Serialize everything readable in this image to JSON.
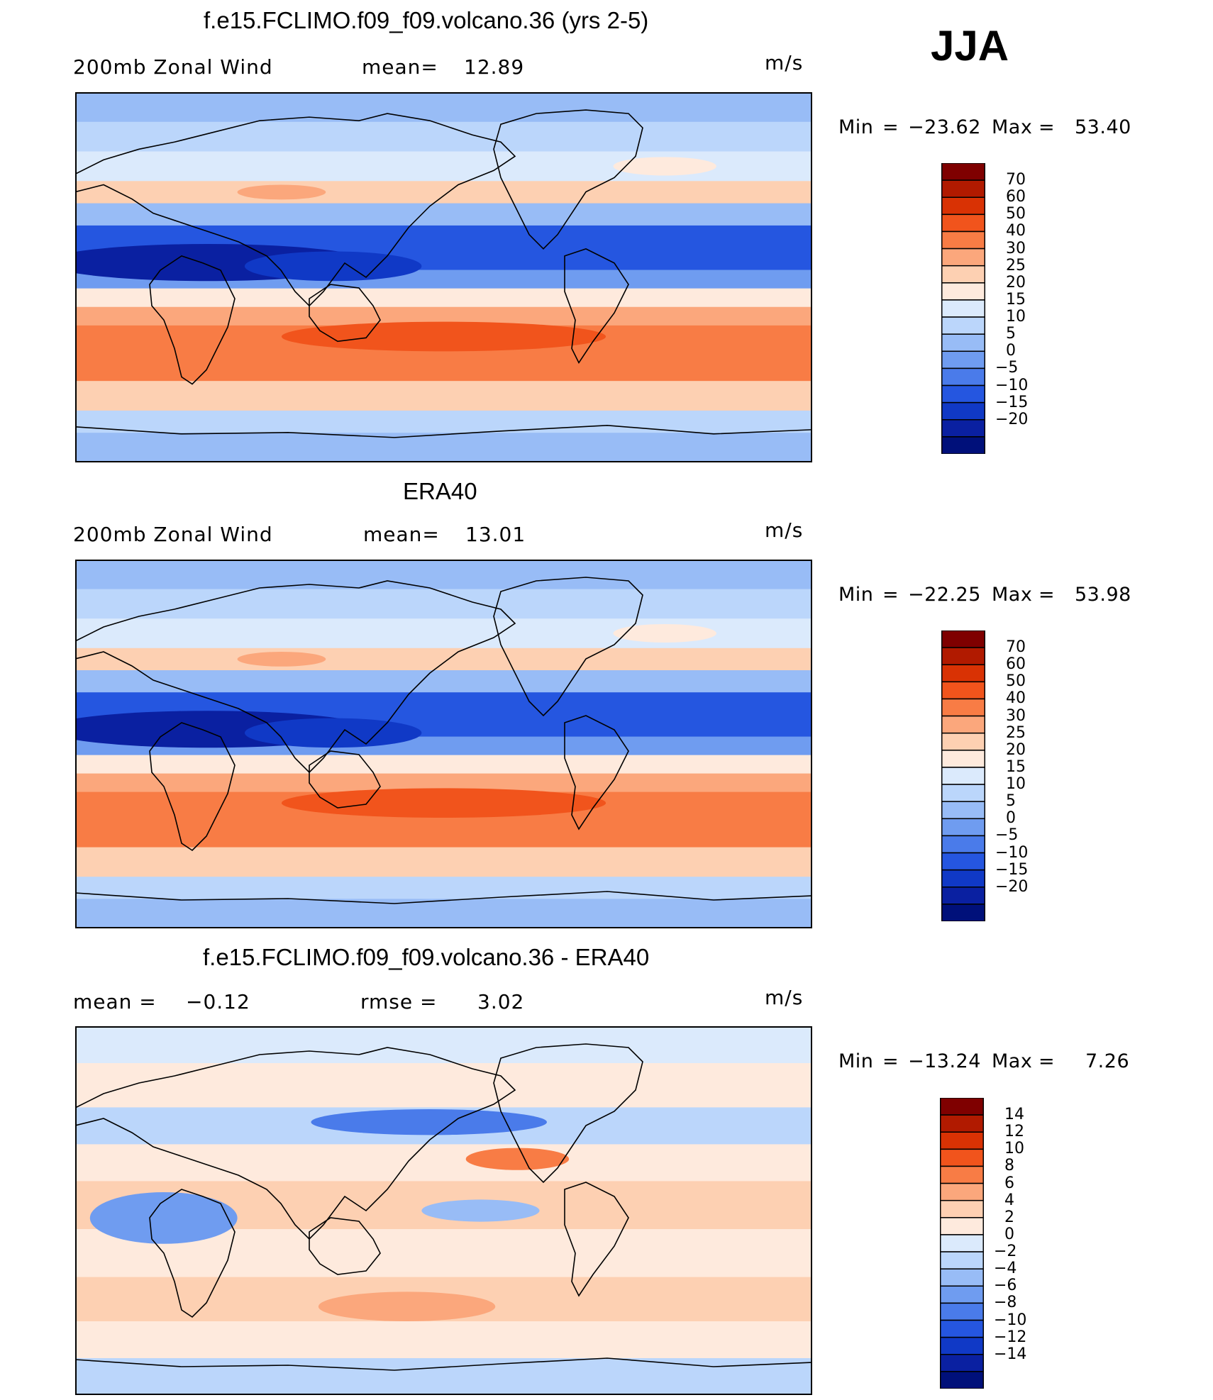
{
  "season": "JJA",
  "units": "m/s",
  "panels": [
    {
      "title": "f.e15.FCLIMO.f09_f09.volcano.36 (yrs 2-5)",
      "left_label": "200mb Zonal Wind",
      "mid_label": "mean=",
      "mid_value": "12.89",
      "units": "m/s",
      "min_label": "Min",
      "min_value": "−23.62",
      "max_label": "Max",
      "max_value": "53.40",
      "field_type": "full",
      "colorbar": {
        "colors": [
          "#7f0000",
          "#b11a00",
          "#d93204",
          "#f1541c",
          "#f87c45",
          "#fba77c",
          "#fdd0b2",
          "#feeadd",
          "#dbeafc",
          "#bbd6fb",
          "#98bcf6",
          "#6f9cf0",
          "#4a7bea",
          "#2556e0",
          "#1039c6",
          "#0a20a1",
          "#00107a"
        ],
        "labels": [
          "70",
          "60",
          "50",
          "40",
          "30",
          "25",
          "20",
          "15",
          "10",
          "5",
          "0",
          "−5",
          "−10",
          "−15",
          "−20"
        ]
      }
    },
    {
      "title": "ERA40",
      "left_label": "200mb Zonal Wind",
      "mid_label": "mean=",
      "mid_value": "13.01",
      "units": "m/s",
      "min_label": "Min",
      "min_value": "−22.25",
      "max_label": "Max",
      "max_value": "53.98",
      "field_type": "full",
      "colorbar": {
        "colors": [
          "#7f0000",
          "#b11a00",
          "#d93204",
          "#f1541c",
          "#f87c45",
          "#fba77c",
          "#fdd0b2",
          "#feeadd",
          "#dbeafc",
          "#bbd6fb",
          "#98bcf6",
          "#6f9cf0",
          "#4a7bea",
          "#2556e0",
          "#1039c6",
          "#0a20a1",
          "#00107a"
        ],
        "labels": [
          "70",
          "60",
          "50",
          "40",
          "30",
          "25",
          "20",
          "15",
          "10",
          "5",
          "0",
          "−5",
          "−10",
          "−15",
          "−20"
        ]
      }
    },
    {
      "title": "f.e15.FCLIMO.f09_f09.volcano.36 - ERA40",
      "left_label": "mean =",
      "left_value": "−0.12",
      "mid_label": "rmse =",
      "mid_value": "3.02",
      "units": "m/s",
      "min_label": "Min",
      "min_value": "−13.24",
      "max_label": "Max",
      "max_value": "7.26",
      "field_type": "diff",
      "colorbar": {
        "colors": [
          "#7f0000",
          "#b11a00",
          "#d93204",
          "#f1541c",
          "#f87c45",
          "#fba77c",
          "#fdd0b2",
          "#feeadd",
          "#dbeafc",
          "#bbd6fb",
          "#98bcf6",
          "#6f9cf0",
          "#4a7bea",
          "#2556e0",
          "#1039c6",
          "#0a20a1",
          "#00107a"
        ],
        "labels": [
          "14",
          "12",
          "10",
          "8",
          "6",
          "4",
          "2",
          "0",
          "−2",
          "−4",
          "−6",
          "−8",
          "−10",
          "−12",
          "−14"
        ]
      }
    }
  ]
}
